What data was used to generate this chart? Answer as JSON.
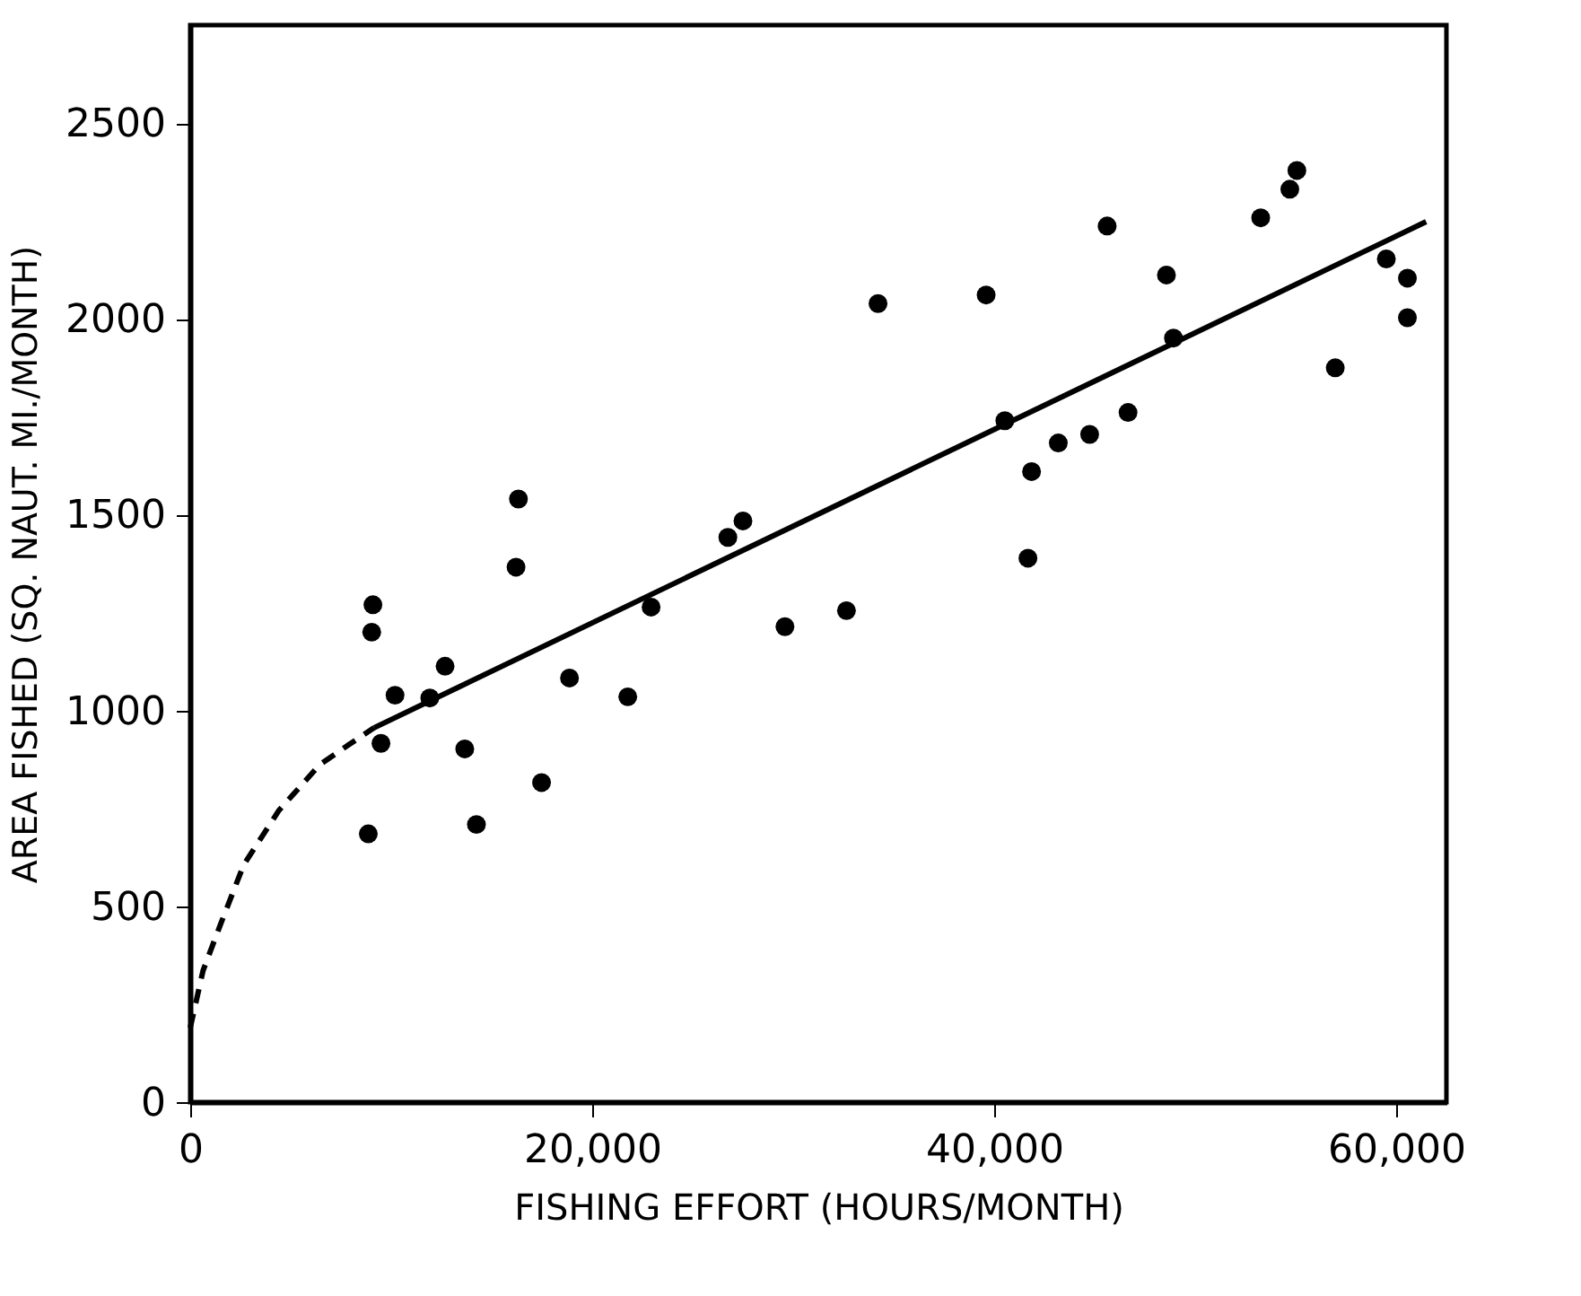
{
  "chart_data": {
    "type": "scatter",
    "xlabel": "FISHING EFFORT  (HOURS/MONTH)",
    "ylabel": "AREA FISHED  (SQ. NAUT. MI./MONTH)",
    "xlim": [
      0,
      62500
    ],
    "ylim": [
      0,
      2750
    ],
    "xticks": [
      0,
      {
        "value": 20000,
        "label": "20,000"
      },
      {
        "value": 40000,
        "label": "40,000"
      },
      {
        "value": 60000,
        "label": "60,000"
      }
    ],
    "yticks": [
      0,
      500,
      1000,
      1500,
      2000,
      2500
    ],
    "grid": false,
    "series": [
      {
        "color": "#000000",
        "marker": "circle",
        "x": [
          9090,
          9030,
          16330,
          16210,
          12680,
          18870,
          22930,
          26750,
          27500,
          29590,
          32650,
          34220,
          10190,
          11920,
          9490,
          13660,
          17480,
          14240,
          8860,
          21770,
          39600,
          40530,
          41860,
          41680,
          43190,
          44750,
          45620,
          46660,
          48570,
          48920,
          53260,
          54710,
          55060,
          56970,
          59510,
          60560,
          60560
        ],
        "values": [
          1270,
          1200,
          1540,
          1366,
          1113,
          1083,
          1264,
          1442,
          1484,
          1214,
          1255,
          2039,
          1039,
          1032,
          916,
          902,
          816,
          709,
          685,
          1035,
          2061,
          1740,
          1610,
          1389,
          1683,
          1705,
          2237,
          1761,
          2112,
          1951,
          2258,
          2331,
          2379,
          1875,
          2153,
          2104,
          2003
        ]
      },
      {
        "type": "line",
        "color": "#000000",
        "marker": "none",
        "line_style": "dashed",
        "x": [
          0,
          640,
          1500,
          2660,
          4400,
          6430,
          7870,
          9150
        ],
        "values": [
          190,
          336,
          453,
          606,
          744,
          861,
          912,
          956
        ]
      },
      {
        "type": "line",
        "color": "#000000",
        "marker": "none",
        "line_style": "solid",
        "x": [
          9150,
          61490
        ],
        "values": [
          956,
          2248
        ]
      }
    ]
  }
}
